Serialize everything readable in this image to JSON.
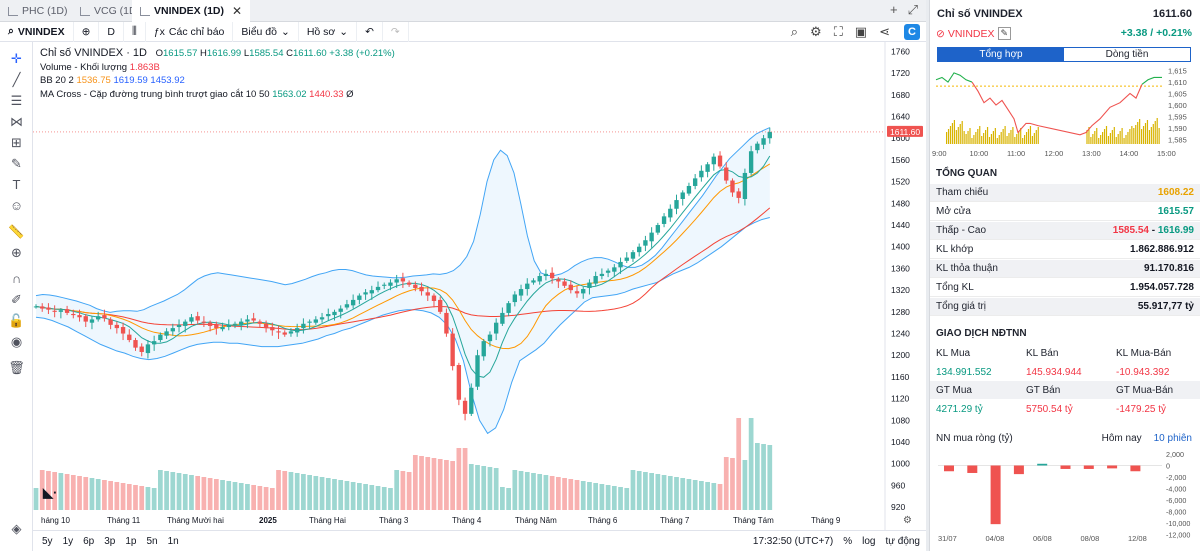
{
  "tabs": [
    {
      "label": "PHC (1D)"
    },
    {
      "label": "VCG (1D)"
    },
    {
      "label": "VNINDEX (1D)"
    }
  ],
  "toolbar": {
    "symbol": "VNINDEX",
    "interval": "D",
    "indicators_label": "Các chỉ báo",
    "chart_label": "Biểu đồ",
    "profile_label": "Hồ sơ"
  },
  "legend": {
    "title": "Chỉ số VNINDEX · 1D",
    "o_label": "O",
    "open": "1615.57",
    "h_label": "H",
    "high": "1616.99",
    "l_label": "L",
    "low": "1585.54",
    "c_label": "C",
    "close": "1611.60",
    "change": "+3.38 (+0.21%)",
    "volume_label": "Volume - Khối lượng",
    "volume_value": "1.863B",
    "bb_label": "BB 20 2",
    "bb_basis": "1536.75",
    "bb_upper": "1619.59",
    "bb_lower": "1453.92",
    "ma_label": "MA Cross - Cặp đường trung bình trượt giao cắt 10 50",
    "ma_fast": "1563.02",
    "ma_slow": "1440.33",
    "ma_extra": "Ø"
  },
  "price_label": "1611.60",
  "bottom": {
    "ranges": [
      "5y",
      "1y",
      "6p",
      "3p",
      "1p",
      "5n",
      "1n"
    ],
    "time": "17:32:50 (UTC+7)",
    "pct": "%",
    "log": "log",
    "auto": "tự động"
  },
  "panel": {
    "title": "Chỉ số VNINDEX",
    "title_value": "1611.60",
    "symbol": "VNINDEX",
    "change": "+3.38 / +0.21%",
    "seg_on": "Tổng hợp",
    "seg_off": "Dòng tiền",
    "overview_title": "TỔNG QUAN",
    "overview": [
      {
        "k": "Tham chiếu",
        "v": "1608.22",
        "c": "#e8a200"
      },
      {
        "k": "Mở cửa",
        "v": "1615.57",
        "c": "#089981"
      },
      {
        "k": "Thấp - Cao",
        "v": "",
        "c": "#131722"
      },
      {
        "k": "KL khớp",
        "v": "1.862.886.912",
        "c": "#131722"
      },
      {
        "k": "KL thỏa thuận",
        "v": "91.170.816",
        "c": "#131722"
      },
      {
        "k": "Tổng KL",
        "v": "1.954.057.728",
        "c": "#131722"
      },
      {
        "k": "Tổng giá trị",
        "v": "55.917,77 tỷ",
        "c": "#131722"
      }
    ],
    "low": "1585.54",
    "high": "1616.99",
    "range_sep": "-",
    "foreign_title": "GIAO DỊCH NĐTNN",
    "f_head1": [
      "KL Mua",
      "KL Bán",
      "KL Mua-Bán"
    ],
    "f_row1": [
      "134.991.552",
      "145.934.944",
      "-10.943.392"
    ],
    "f_head2": [
      "GT Mua",
      "GT Bán",
      "GT Mua-Bán"
    ],
    "f_row2": [
      "4271.29 tỷ",
      "5750.54 tỷ",
      "-1479.25 tỷ"
    ],
    "nn_title": "NN mua ròng (tỷ)",
    "nn_today": "Hôm nay",
    "nn_10": "10 phiên"
  },
  "chart_data": {
    "type": "candlestick",
    "title": "Chỉ số VNINDEX · 1D",
    "yticks": [
      1760,
      1720,
      1680,
      1640,
      1600,
      1560,
      1520,
      1480,
      1440,
      1400,
      1360,
      1320,
      1280,
      1240,
      1200,
      1160,
      1120,
      1080,
      1040,
      1000,
      960,
      920
    ],
    "xlabels": [
      "háng 10",
      "Tháng 11",
      "Tháng Mười hai",
      "2025",
      "Tháng Hai",
      "Tháng 3",
      "Tháng 4",
      "Tháng Năm",
      "Tháng 6",
      "Tháng 7",
      "Tháng Tám",
      "Tháng 9"
    ],
    "ylim": [
      900,
      1770
    ],
    "close_path": [
      1290,
      1286,
      1284,
      1280,
      1283,
      1278,
      1274,
      1270,
      1262,
      1266,
      1272,
      1268,
      1256,
      1250,
      1240,
      1228,
      1214,
      1206,
      1220,
      1226,
      1238,
      1244,
      1250,
      1256,
      1262,
      1270,
      1264,
      1260,
      1254,
      1250,
      1252,
      1256,
      1258,
      1262,
      1266,
      1264,
      1258,
      1250,
      1246,
      1242,
      1238,
      1244,
      1250,
      1258,
      1262,
      1266,
      1270,
      1276,
      1280,
      1286,
      1294,
      1302,
      1310,
      1316,
      1320,
      1326,
      1330,
      1334,
      1340,
      1336,
      1330,
      1324,
      1318,
      1310,
      1300,
      1280,
      1240,
      1180,
      1118,
      1092,
      1140,
      1200,
      1226,
      1238,
      1260,
      1278,
      1296,
      1312,
      1322,
      1332,
      1338,
      1346,
      1350,
      1342,
      1336,
      1328,
      1320,
      1314,
      1322,
      1334,
      1346,
      1350,
      1356,
      1362,
      1372,
      1380,
      1390,
      1400,
      1412,
      1426,
      1440,
      1456,
      1470,
      1486,
      1500,
      1512,
      1526,
      1540,
      1552,
      1566,
      1548,
      1522,
      1500,
      1490,
      1536,
      1576,
      1590,
      1600,
      1611.6
    ],
    "bb_upper_path": [
      1310,
      1312,
      1311,
      1309,
      1306,
      1303,
      1300,
      1296,
      1292,
      1286,
      1282,
      1279,
      1281,
      1282,
      1282,
      1281,
      1284,
      1290,
      1295,
      1300,
      1306,
      1312,
      1320,
      1330,
      1340,
      1346,
      1350,
      1352,
      1350,
      1348,
      1346,
      1344,
      1342,
      1340,
      1338,
      1336,
      1333,
      1330,
      1332,
      1336,
      1340,
      1345,
      1349,
      1352,
      1356,
      1358,
      1358,
      1356,
      1352,
      1348,
      1346,
      1345,
      1344,
      1343,
      1343,
      1344,
      1346,
      1347,
      1348,
      1350,
      1349,
      1351,
      1356,
      1366,
      1382,
      1410,
      1460,
      1520,
      1560,
      1578,
      1568,
      1536,
      1480,
      1420,
      1374,
      1352,
      1347,
      1347,
      1350,
      1356,
      1365,
      1372,
      1377,
      1380,
      1380,
      1377,
      1372,
      1366,
      1362,
      1362,
      1366,
      1374,
      1384,
      1398,
      1414,
      1430,
      1446,
      1462,
      1478,
      1494,
      1512,
      1530,
      1546,
      1562,
      1574,
      1586,
      1598,
      1608,
      1614,
      1619.59
    ],
    "bb_lower_path": [
      1270,
      1268,
      1264,
      1258,
      1252,
      1244,
      1236,
      1228,
      1220,
      1214,
      1208,
      1204,
      1198,
      1194,
      1192,
      1194,
      1198,
      1204,
      1210,
      1216,
      1220,
      1222,
      1224,
      1224,
      1222,
      1222,
      1220,
      1218,
      1216,
      1216,
      1216,
      1218,
      1220,
      1222,
      1226,
      1230,
      1236,
      1240,
      1246,
      1250,
      1256,
      1262,
      1268,
      1274,
      1278,
      1282,
      1284,
      1284,
      1282,
      1278,
      1270,
      1256,
      1230,
      1190,
      1130,
      1080,
      1056,
      1066,
      1100,
      1150,
      1190,
      1200,
      1210,
      1222,
      1240,
      1256,
      1270,
      1284,
      1298,
      1306,
      1308,
      1310,
      1312,
      1316,
      1322,
      1326,
      1330,
      1334,
      1342,
      1350,
      1356,
      1362,
      1370,
      1380,
      1390,
      1400,
      1412,
      1424,
      1436,
      1444,
      1450,
      1453.92
    ]
  }
}
